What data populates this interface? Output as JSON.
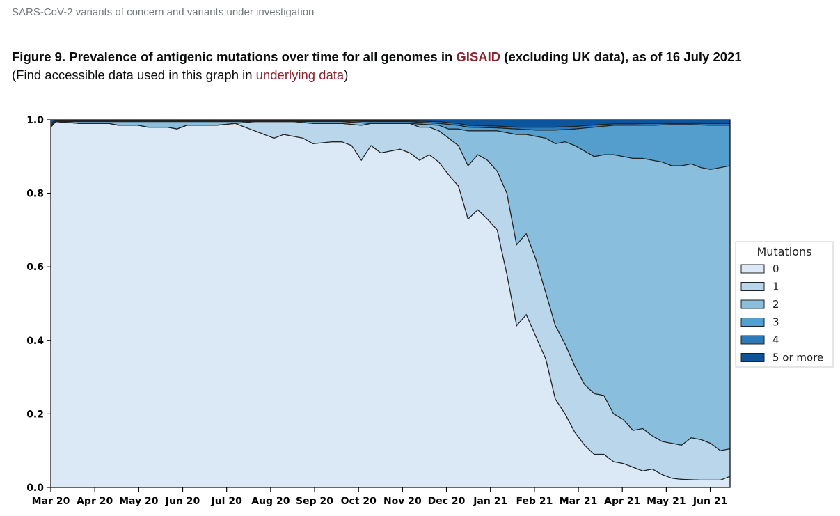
{
  "page": {
    "breadcrumb": "SARS-CoV-2 variants of concern and variants under investigation",
    "title_prefix": "Figure 9. Prevalence of antigenic mutations over time for all genomes in ",
    "title_link": "GISAID",
    "title_suffix": " (excluding UK data), as of 16 July 2021",
    "subtitle_prefix": "(Find accessible data used in this graph in ",
    "subtitle_link": "underlying data",
    "subtitle_suffix": ")"
  },
  "chart_data": {
    "type": "area",
    "stacked": true,
    "x_tick_labels": [
      "Mar 20",
      "Apr 20",
      "May 20",
      "Jun 20",
      "Jul 20",
      "Aug 20",
      "Sep 20",
      "Oct 20",
      "Nov 20",
      "Dec 20",
      "Jan 21",
      "Feb 21",
      "Mar 21",
      "Apr 21",
      "May 21",
      "Jun 21"
    ],
    "y_ticks": [
      0.0,
      0.2,
      0.4,
      0.6,
      0.8,
      1.0
    ],
    "y_tick_labels": [
      "0.0",
      "0.2",
      "0.4",
      "0.6",
      "0.8",
      "1.0"
    ],
    "ylim": [
      0,
      1
    ],
    "x_unit": "weeks since start of March 2020",
    "xlim": [
      0,
      70
    ],
    "legend": {
      "title": "Mutations",
      "position": "right"
    },
    "series": [
      {
        "name": "0",
        "color": "#dbe9f6"
      },
      {
        "name": "1",
        "color": "#bad6eb"
      },
      {
        "name": "2",
        "color": "#89bedc"
      },
      {
        "name": "3",
        "color": "#539ecd"
      },
      {
        "name": "4",
        "color": "#2b7bba"
      },
      {
        "name": "5 or more",
        "color": "#0b559f"
      }
    ],
    "cumulative_boundaries": [
      {
        "upper_of": "0",
        "points": [
          [
            0,
            0.98
          ],
          [
            0.5,
            0.995
          ],
          [
            3,
            0.99
          ],
          [
            6,
            0.99
          ],
          [
            7,
            0.985
          ],
          [
            9,
            0.985
          ],
          [
            10,
            0.98
          ],
          [
            12,
            0.98
          ],
          [
            13,
            0.975
          ],
          [
            14,
            0.985
          ],
          [
            17,
            0.985
          ],
          [
            19,
            0.99
          ],
          [
            21,
            0.97
          ],
          [
            22,
            0.96
          ],
          [
            23,
            0.95
          ],
          [
            24,
            0.96
          ],
          [
            25,
            0.955
          ],
          [
            26,
            0.95
          ],
          [
            27,
            0.935
          ],
          [
            29,
            0.94
          ],
          [
            30,
            0.94
          ],
          [
            31,
            0.93
          ],
          [
            32,
            0.89
          ],
          [
            33,
            0.93
          ],
          [
            34,
            0.91
          ],
          [
            35,
            0.915
          ],
          [
            36,
            0.92
          ],
          [
            37,
            0.91
          ],
          [
            38,
            0.89
          ],
          [
            39,
            0.905
          ],
          [
            40,
            0.885
          ],
          [
            41,
            0.85
          ],
          [
            42,
            0.82
          ],
          [
            43,
            0.73
          ],
          [
            44,
            0.755
          ],
          [
            45,
            0.73
          ],
          [
            46,
            0.7
          ],
          [
            47,
            0.58
          ],
          [
            48,
            0.44
          ],
          [
            49,
            0.47
          ],
          [
            50,
            0.41
          ],
          [
            51,
            0.35
          ],
          [
            52,
            0.24
          ],
          [
            53,
            0.2
          ],
          [
            54,
            0.15
          ],
          [
            55,
            0.115
          ],
          [
            56,
            0.09
          ],
          [
            57,
            0.09
          ],
          [
            58,
            0.07
          ],
          [
            59,
            0.065
          ],
          [
            60,
            0.055
          ],
          [
            61,
            0.045
          ],
          [
            62,
            0.05
          ],
          [
            63,
            0.035
          ],
          [
            64,
            0.025
          ],
          [
            65,
            0.022
          ],
          [
            67,
            0.02
          ],
          [
            68,
            0.02
          ],
          [
            69,
            0.02
          ],
          [
            70,
            0.03
          ]
        ]
      },
      {
        "upper_of": "1",
        "points": [
          [
            0,
            0.98
          ],
          [
            0.5,
            0.995
          ],
          [
            3,
            0.99
          ],
          [
            6,
            0.99
          ],
          [
            7,
            0.985
          ],
          [
            9,
            0.985
          ],
          [
            10,
            0.98
          ],
          [
            12,
            0.98
          ],
          [
            13,
            0.975
          ],
          [
            14,
            0.985
          ],
          [
            17,
            0.985
          ],
          [
            19,
            0.99
          ],
          [
            21,
            0.995
          ],
          [
            25,
            0.995
          ],
          [
            27,
            0.99
          ],
          [
            30,
            0.99
          ],
          [
            32,
            0.985
          ],
          [
            33,
            0.99
          ],
          [
            35,
            0.99
          ],
          [
            37,
            0.99
          ],
          [
            38,
            0.98
          ],
          [
            39,
            0.98
          ],
          [
            40,
            0.97
          ],
          [
            41,
            0.95
          ],
          [
            42,
            0.93
          ],
          [
            43,
            0.875
          ],
          [
            44,
            0.905
          ],
          [
            45,
            0.89
          ],
          [
            46,
            0.86
          ],
          [
            47,
            0.8
          ],
          [
            48,
            0.66
          ],
          [
            49,
            0.69
          ],
          [
            50,
            0.62
          ],
          [
            51,
            0.53
          ],
          [
            52,
            0.44
          ],
          [
            53,
            0.39
          ],
          [
            54,
            0.33
          ],
          [
            55,
            0.28
          ],
          [
            56,
            0.255
          ],
          [
            57,
            0.25
          ],
          [
            58,
            0.2
          ],
          [
            59,
            0.185
          ],
          [
            60,
            0.155
          ],
          [
            61,
            0.16
          ],
          [
            62,
            0.14
          ],
          [
            63,
            0.125
          ],
          [
            64,
            0.12
          ],
          [
            65,
            0.115
          ],
          [
            66,
            0.135
          ],
          [
            67,
            0.13
          ],
          [
            68,
            0.12
          ],
          [
            69,
            0.1
          ],
          [
            70,
            0.105
          ]
        ]
      },
      {
        "upper_of": "2",
        "points": [
          [
            0,
            0.98
          ],
          [
            0.5,
            0.995
          ],
          [
            6,
            0.995
          ],
          [
            19,
            0.995
          ],
          [
            21,
            0.995
          ],
          [
            25,
            0.995
          ],
          [
            30,
            0.995
          ],
          [
            33,
            0.99
          ],
          [
            37,
            0.99
          ],
          [
            40,
            0.985
          ],
          [
            41,
            0.975
          ],
          [
            42,
            0.975
          ],
          [
            43,
            0.97
          ],
          [
            46,
            0.97
          ],
          [
            47,
            0.965
          ],
          [
            48,
            0.96
          ],
          [
            49,
            0.96
          ],
          [
            50,
            0.955
          ],
          [
            51,
            0.95
          ],
          [
            52,
            0.935
          ],
          [
            53,
            0.94
          ],
          [
            54,
            0.93
          ],
          [
            55,
            0.915
          ],
          [
            56,
            0.9
          ],
          [
            57,
            0.905
          ],
          [
            58,
            0.905
          ],
          [
            59,
            0.9
          ],
          [
            60,
            0.895
          ],
          [
            61,
            0.895
          ],
          [
            62,
            0.89
          ],
          [
            63,
            0.885
          ],
          [
            64,
            0.875
          ],
          [
            65,
            0.875
          ],
          [
            66,
            0.88
          ],
          [
            67,
            0.87
          ],
          [
            68,
            0.865
          ],
          [
            69,
            0.87
          ],
          [
            70,
            0.875
          ]
        ]
      },
      {
        "upper_of": "3",
        "points": [
          [
            0,
            0.985
          ],
          [
            0.5,
            0.996
          ],
          [
            19,
            0.997
          ],
          [
            30,
            0.997
          ],
          [
            33,
            0.995
          ],
          [
            37,
            0.995
          ],
          [
            40,
            0.99
          ],
          [
            42,
            0.985
          ],
          [
            43,
            0.98
          ],
          [
            46,
            0.978
          ],
          [
            48,
            0.975
          ],
          [
            50,
            0.972
          ],
          [
            52,
            0.972
          ],
          [
            54,
            0.975
          ],
          [
            56,
            0.98
          ],
          [
            58,
            0.985
          ],
          [
            60,
            0.985
          ],
          [
            62,
            0.985
          ],
          [
            64,
            0.987
          ],
          [
            66,
            0.987
          ],
          [
            68,
            0.985
          ],
          [
            70,
            0.985
          ]
        ]
      },
      {
        "upper_of": "4",
        "points": [
          [
            0,
            0.99
          ],
          [
            0.5,
            0.998
          ],
          [
            19,
            0.998
          ],
          [
            30,
            0.998
          ],
          [
            33,
            0.997
          ],
          [
            37,
            0.997
          ],
          [
            40,
            0.995
          ],
          [
            42,
            0.99
          ],
          [
            43,
            0.985
          ],
          [
            46,
            0.983
          ],
          [
            48,
            0.98
          ],
          [
            50,
            0.98
          ],
          [
            52,
            0.98
          ],
          [
            54,
            0.982
          ],
          [
            56,
            0.986
          ],
          [
            58,
            0.989
          ],
          [
            60,
            0.989
          ],
          [
            62,
            0.99
          ],
          [
            64,
            0.99
          ],
          [
            66,
            0.99
          ],
          [
            68,
            0.99
          ],
          [
            70,
            0.99
          ]
        ]
      },
      {
        "upper_of": "5 or more",
        "points": [
          [
            0,
            1.0
          ],
          [
            70,
            1.0
          ]
        ]
      }
    ]
  }
}
